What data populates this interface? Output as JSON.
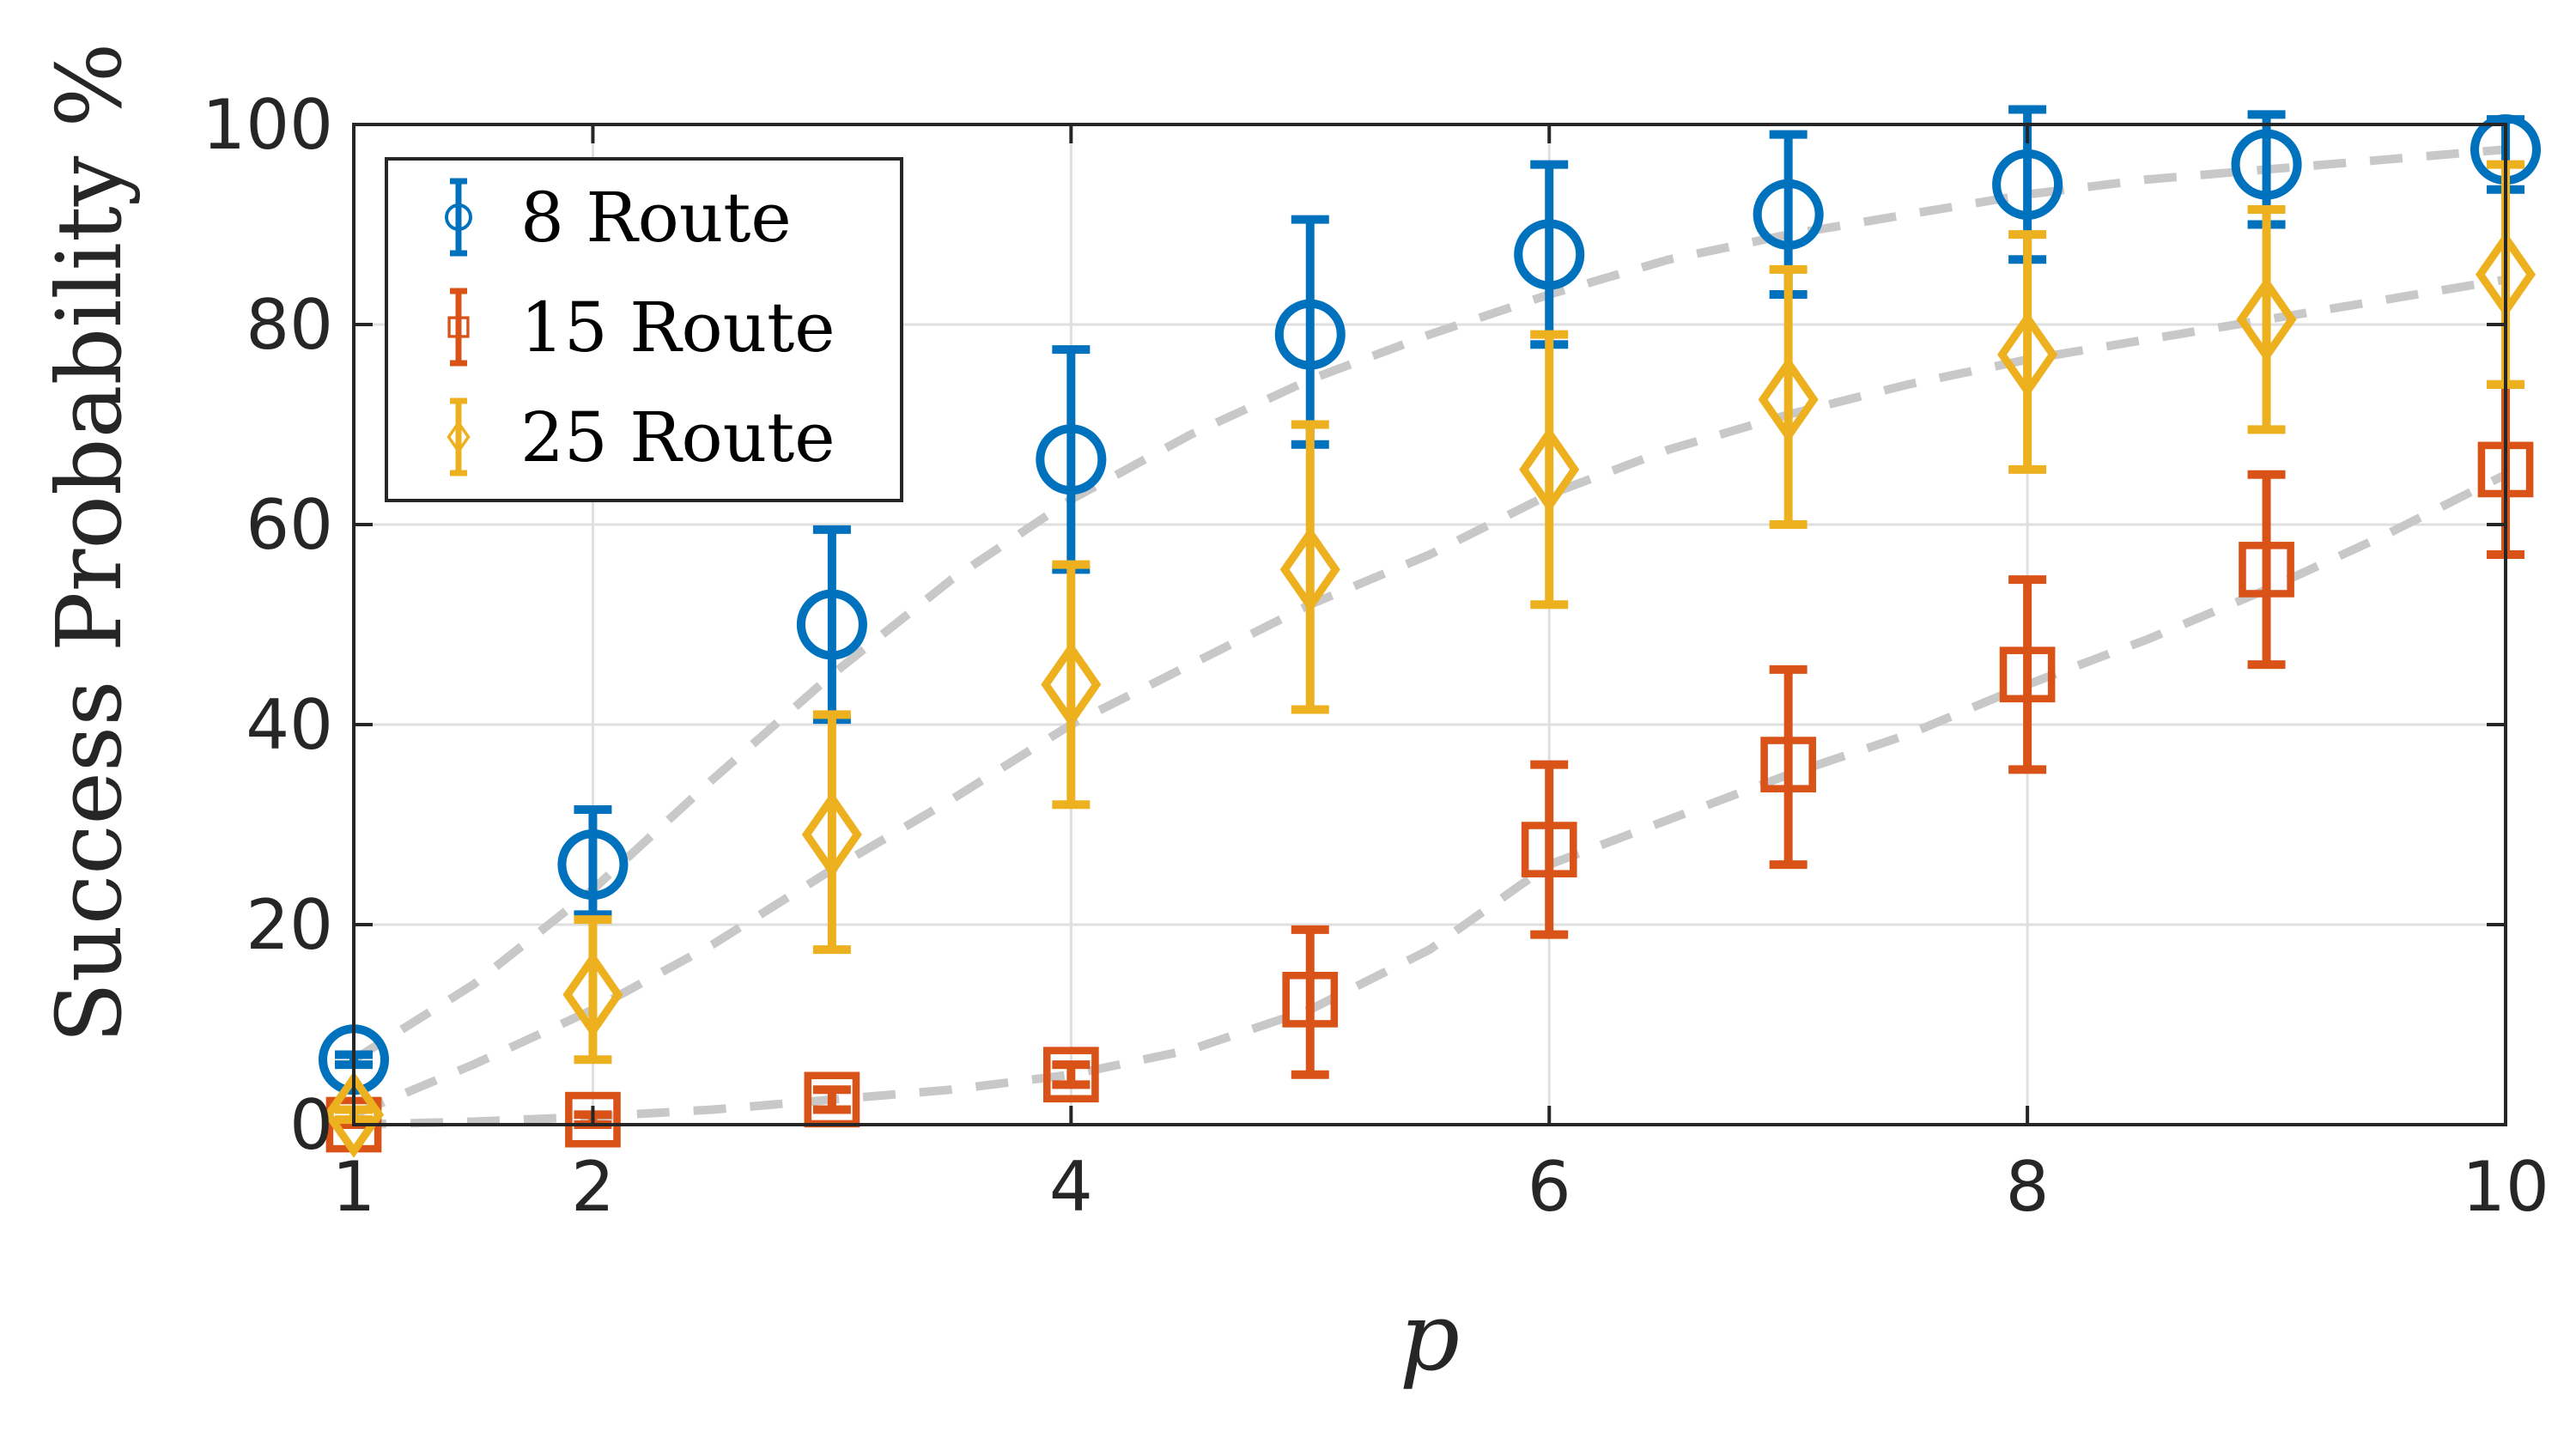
{
  "chart_data": {
    "type": "scatter",
    "xlabel": "p",
    "ylabel": "Success Probability %",
    "xlim": [
      1,
      10
    ],
    "ylim": [
      0,
      100
    ],
    "xticks": [
      1,
      2,
      4,
      6,
      8,
      10
    ],
    "yticks": [
      0,
      20,
      40,
      60,
      80,
      100
    ],
    "grid": true,
    "legend_position": "top-left",
    "fit_line_color": "#c8c8c8",
    "series": [
      {
        "name": "8 Route",
        "color": "#0072BD",
        "marker": "circle",
        "x": [
          1,
          2,
          3,
          4,
          5,
          6,
          7,
          8,
          9,
          10
        ],
        "y": [
          6.5,
          26,
          50,
          66.5,
          79,
          87,
          91,
          94,
          96,
          97.5
        ],
        "err_low": [
          0.5,
          5,
          9.5,
          11,
          11,
          9,
          8,
          7.5,
          6,
          4
        ],
        "err_high": [
          0.5,
          5.5,
          9.5,
          11,
          11.5,
          9,
          8,
          7.5,
          5,
          3
        ],
        "fit": [
          [
            1,
            6.5
          ],
          [
            1.5,
            14
          ],
          [
            2,
            23.5
          ],
          [
            2.5,
            34.5
          ],
          [
            3,
            45
          ],
          [
            3.5,
            54.5
          ],
          [
            4,
            62.5
          ],
          [
            4.5,
            69
          ],
          [
            5,
            74.5
          ],
          [
            5.5,
            79
          ],
          [
            6,
            83
          ],
          [
            6.5,
            86.5
          ],
          [
            7,
            89
          ],
          [
            7.5,
            91
          ],
          [
            8,
            93
          ],
          [
            8.5,
            94.5
          ],
          [
            9,
            95.5
          ],
          [
            9.5,
            96.5
          ],
          [
            10,
            97.5
          ]
        ]
      },
      {
        "name": "15 Route",
        "color": "#D95319",
        "marker": "square",
        "x": [
          1,
          2,
          3,
          4,
          5,
          6,
          7,
          8,
          9,
          10
        ],
        "y": [
          0,
          0.5,
          2.5,
          5,
          12.5,
          27.5,
          36,
          45,
          55.5,
          65.5
        ],
        "err_low": [
          0,
          0.5,
          1,
          1,
          7.5,
          8.5,
          10,
          9.5,
          9.5,
          8.5
        ],
        "err_high": [
          0,
          0.5,
          1,
          1,
          7,
          8.5,
          9.5,
          9.5,
          9.5,
          8.5
        ],
        "fit": [
          [
            1,
            0
          ],
          [
            1.5,
            0.3
          ],
          [
            2,
            0.8
          ],
          [
            2.5,
            1.5
          ],
          [
            3,
            2.5
          ],
          [
            3.5,
            3.5
          ],
          [
            4,
            5
          ],
          [
            4.5,
            7.5
          ],
          [
            5,
            11.5
          ],
          [
            5.5,
            17.5
          ],
          [
            6,
            26
          ],
          [
            6.5,
            30.5
          ],
          [
            7,
            35
          ],
          [
            7.5,
            39
          ],
          [
            8,
            44
          ],
          [
            8.5,
            48.5
          ],
          [
            9,
            53.5
          ],
          [
            9.5,
            59
          ],
          [
            10,
            65
          ]
        ]
      },
      {
        "name": "25 Route",
        "color": "#EDB120",
        "marker": "diamond",
        "x": [
          1,
          2,
          3,
          4,
          5,
          6,
          7,
          8,
          9,
          10
        ],
        "y": [
          1,
          13,
          29,
          44,
          55.5,
          65.5,
          72.5,
          77,
          80.5,
          85
        ],
        "err_low": [
          0.5,
          6.5,
          11.5,
          12,
          14,
          13.5,
          12.5,
          11.5,
          11,
          11
        ],
        "err_high": [
          0.5,
          7.5,
          12,
          12,
          14.5,
          13.5,
          13,
          12,
          11,
          11
        ],
        "fit": [
          [
            1,
            1
          ],
          [
            1.5,
            6
          ],
          [
            2,
            11.5
          ],
          [
            2.5,
            18
          ],
          [
            3,
            25.5
          ],
          [
            3.5,
            32.5
          ],
          [
            4,
            40
          ],
          [
            4.5,
            46
          ],
          [
            5,
            52
          ],
          [
            5.5,
            57
          ],
          [
            6,
            63
          ],
          [
            6.5,
            67.5
          ],
          [
            7,
            71
          ],
          [
            7.5,
            74
          ],
          [
            8,
            76.5
          ],
          [
            8.5,
            78.5
          ],
          [
            9,
            80.5
          ],
          [
            9.5,
            82.5
          ],
          [
            10,
            84.5
          ]
        ]
      }
    ]
  }
}
